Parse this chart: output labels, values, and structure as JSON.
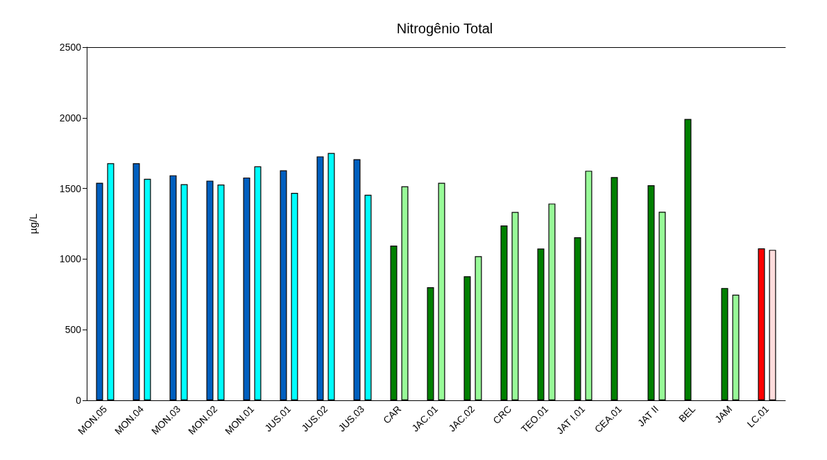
{
  "chart_data": {
    "type": "bar",
    "title": "Nitrogênio Total",
    "ylabel": "µg/L",
    "categories": [
      "MON.05",
      "MON.04",
      "MON.03",
      "MON.02",
      "MON.01",
      "JUS.01",
      "JUS.02",
      "JUS.03",
      "CAR",
      "JAC.01",
      "JAC.02",
      "CRC",
      "TEO.01",
      "JAT I.01",
      "CEA.01",
      "JAT II",
      "BEL",
      "JAM",
      "LC.01"
    ],
    "series": [
      {
        "values": [
          1540,
          1678,
          1593,
          1555,
          1577,
          1628,
          1727,
          1707,
          1095,
          800,
          878,
          1238,
          1074,
          1154,
          1580,
          1522,
          1992,
          795,
          1076
        ],
        "colors": [
          "#005fbf",
          "#005fbf",
          "#005fbf",
          "#005fbf",
          "#005fbf",
          "#005fbf",
          "#005fbf",
          "#005fbf",
          "#007f00",
          "#007f00",
          "#007f00",
          "#007f00",
          "#007f00",
          "#007f00",
          "#007f00",
          "#007f00",
          "#007f00",
          "#007f00",
          "#ff0000"
        ]
      },
      {
        "values": [
          1678,
          1568,
          1530,
          1527,
          1656,
          1468,
          1751,
          1455,
          1515,
          1540,
          1020,
          1333,
          1393,
          1625,
          null,
          1335,
          null,
          748,
          1065
        ],
        "colors": [
          "#00ffff",
          "#00ffff",
          "#00ffff",
          "#00ffff",
          "#00ffff",
          "#00ffff",
          "#00ffff",
          "#00ffff",
          "#98fb98",
          "#98fb98",
          "#98fb98",
          "#98fb98",
          "#98fb98",
          "#98fb98",
          "#98fb98",
          "#98fb98",
          "#98fb98",
          "#98fb98",
          "#ffdcdc"
        ]
      }
    ],
    "ylim": [
      0,
      2500
    ],
    "yticks": [
      0,
      500,
      1000,
      1500,
      2000,
      2500
    ],
    "grid": false
  }
}
